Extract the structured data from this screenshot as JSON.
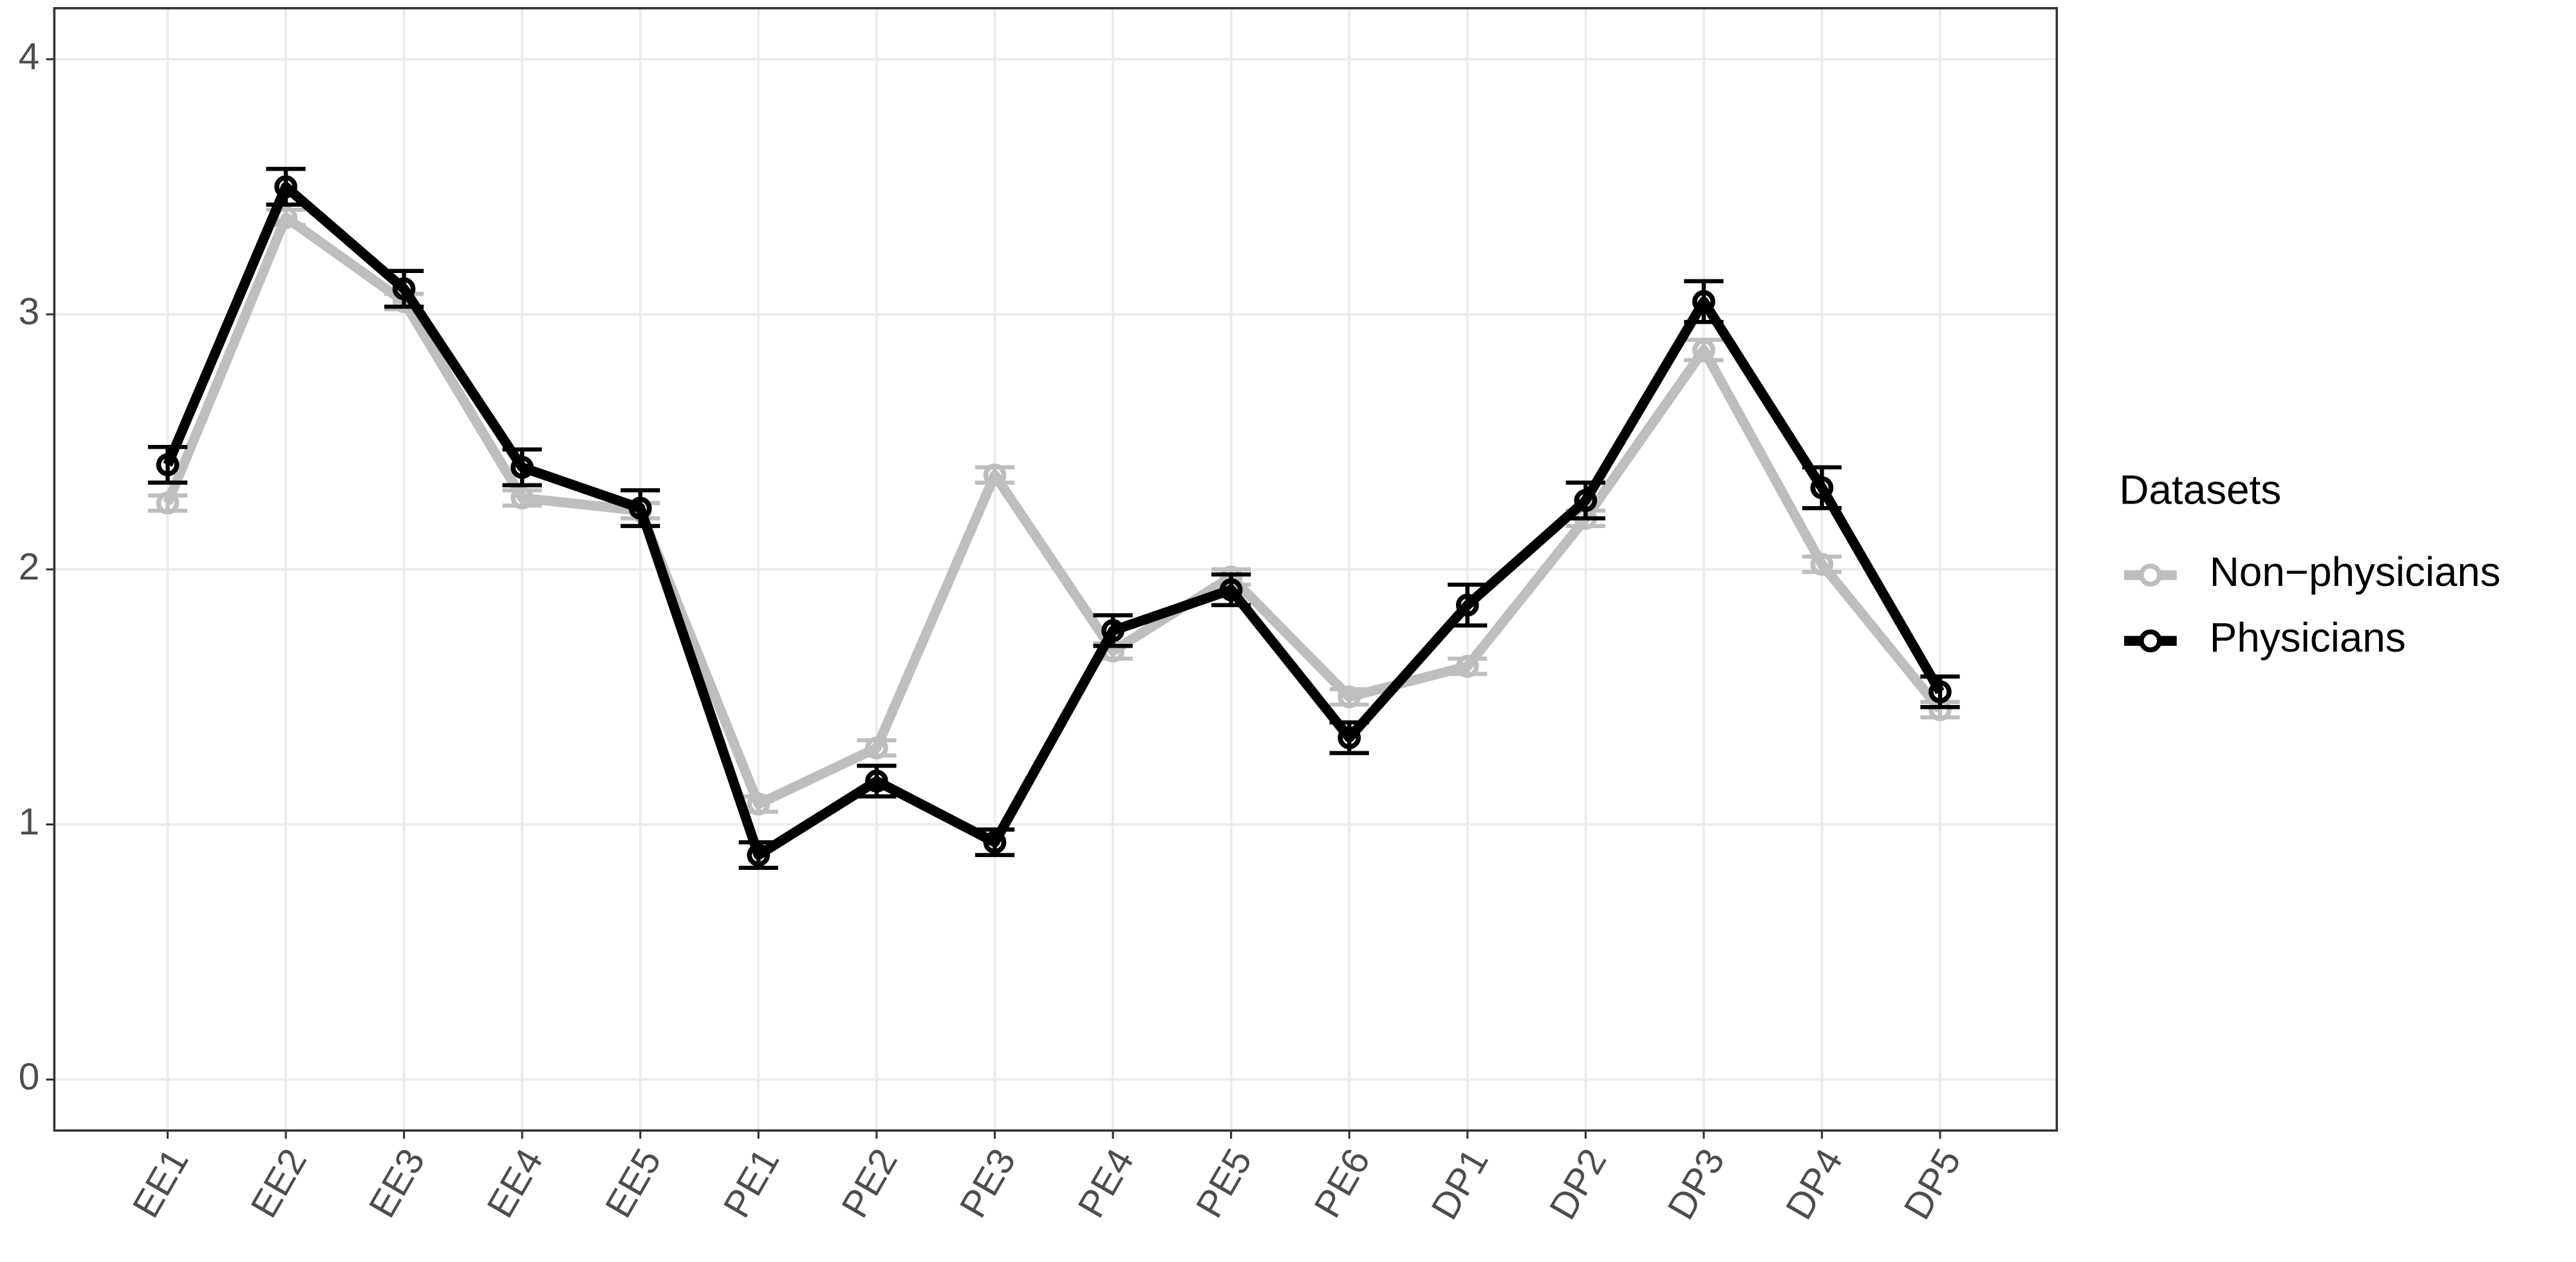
{
  "chart_data": {
    "type": "line",
    "categories": [
      "EE1",
      "EE2",
      "EE3",
      "EE4",
      "EE5",
      "PE1",
      "PE2",
      "PE3",
      "PE4",
      "PE5",
      "PE6",
      "DP1",
      "DP2",
      "DP3",
      "DP4",
      "DP5"
    ],
    "series": [
      {
        "name": "Non−physicians",
        "color": "#bebebe",
        "values": [
          2.26,
          3.38,
          3.05,
          2.28,
          2.23,
          1.08,
          1.3,
          2.37,
          1.68,
          1.97,
          1.5,
          1.62,
          2.2,
          2.86,
          2.02,
          1.45
        ],
        "errors": [
          0.03,
          0.03,
          0.03,
          0.03,
          0.03,
          0.03,
          0.03,
          0.03,
          0.03,
          0.03,
          0.03,
          0.03,
          0.03,
          0.04,
          0.03,
          0.03
        ]
      },
      {
        "name": "Physicians",
        "color": "#000000",
        "values": [
          2.41,
          3.5,
          3.1,
          2.4,
          2.24,
          0.88,
          1.17,
          0.93,
          1.76,
          1.92,
          1.34,
          1.86,
          2.27,
          3.05,
          2.32,
          1.52
        ],
        "errors": [
          0.07,
          0.07,
          0.07,
          0.07,
          0.07,
          0.05,
          0.06,
          0.05,
          0.06,
          0.06,
          0.06,
          0.08,
          0.07,
          0.08,
          0.08,
          0.06
        ]
      }
    ],
    "ylim": [
      -0.2,
      4.2
    ],
    "yticks": [
      0,
      1,
      2,
      3,
      4
    ],
    "grid": true,
    "legend_title": "Datasets",
    "legend": "right"
  }
}
